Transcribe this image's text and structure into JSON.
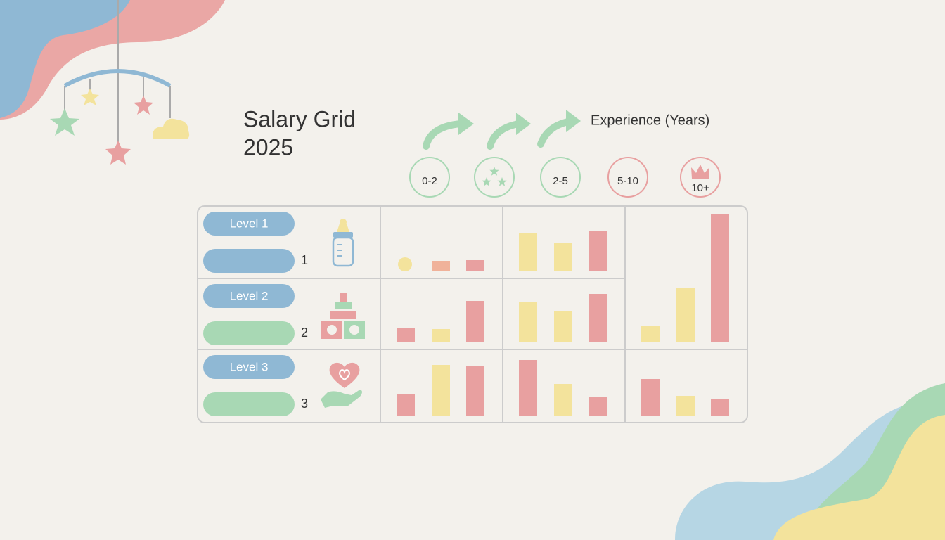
{
  "title": [
    "Salary Grid",
    "2025"
  ],
  "axis_label": "Experience (Years)",
  "experience_bands": [
    "0-2",
    null,
    "2-5",
    "5-10",
    "10+"
  ],
  "grid": {
    "rows": [
      {
        "label": "Level 1",
        "number": 1,
        "cells": [
          {
            "values": [
              20,
              15,
              16
            ],
            "shapes": [
              "dot",
              "bar",
              "bar"
            ],
            "colors": [
              "#f3e39c",
              "#f0b29a",
              "#e8a0a0"
            ]
          },
          {
            "values": [
              54,
              40,
              58
            ],
            "shapes": [
              "bar",
              "bar",
              "bar"
            ],
            "colors": [
              "#f3e39c",
              "#f3e39c",
              "#e8a0a0"
            ]
          },
          {
            "span": 2,
            "values": [
              24,
              77,
              183
            ],
            "shapes": [
              "bar",
              "bar",
              "bar"
            ],
            "colors": [
              "#f3e39c",
              "#f3e39c",
              "#e8a0a0"
            ]
          }
        ]
      },
      {
        "label": "Level 2",
        "number": 2,
        "cells": [
          {
            "values": [
              20,
              19,
              59
            ],
            "shapes": [
              "bar",
              "bar",
              "bar"
            ],
            "colors": [
              "#e8a0a0",
              "#f3e39c",
              "#e8a0a0"
            ]
          },
          {
            "values": [
              57,
              45,
              69
            ],
            "shapes": [
              "bar",
              "bar",
              "bar"
            ],
            "colors": [
              "#f3e39c",
              "#f3e39c",
              "#e8a0a0"
            ]
          }
        ]
      },
      {
        "label": "Level 3",
        "number": 3,
        "cells": [
          {
            "values": [
              31,
              72,
              71
            ],
            "shapes": [
              "bar",
              "bar",
              "bar"
            ],
            "colors": [
              "#e8a0a0",
              "#f3e39c",
              "#e8a0a0"
            ]
          },
          {
            "values": [
              79,
              45,
              27
            ],
            "shapes": [
              "bar",
              "bar",
              "bar"
            ],
            "colors": [
              "#e8a0a0",
              "#f3e39c",
              "#e8a0a0"
            ]
          },
          {
            "values": [
              52,
              28,
              23
            ],
            "shapes": [
              "bar",
              "bar",
              "bar"
            ],
            "colors": [
              "#e8a0a0",
              "#f3e39c",
              "#e8a0a0"
            ]
          }
        ]
      }
    ]
  }
}
